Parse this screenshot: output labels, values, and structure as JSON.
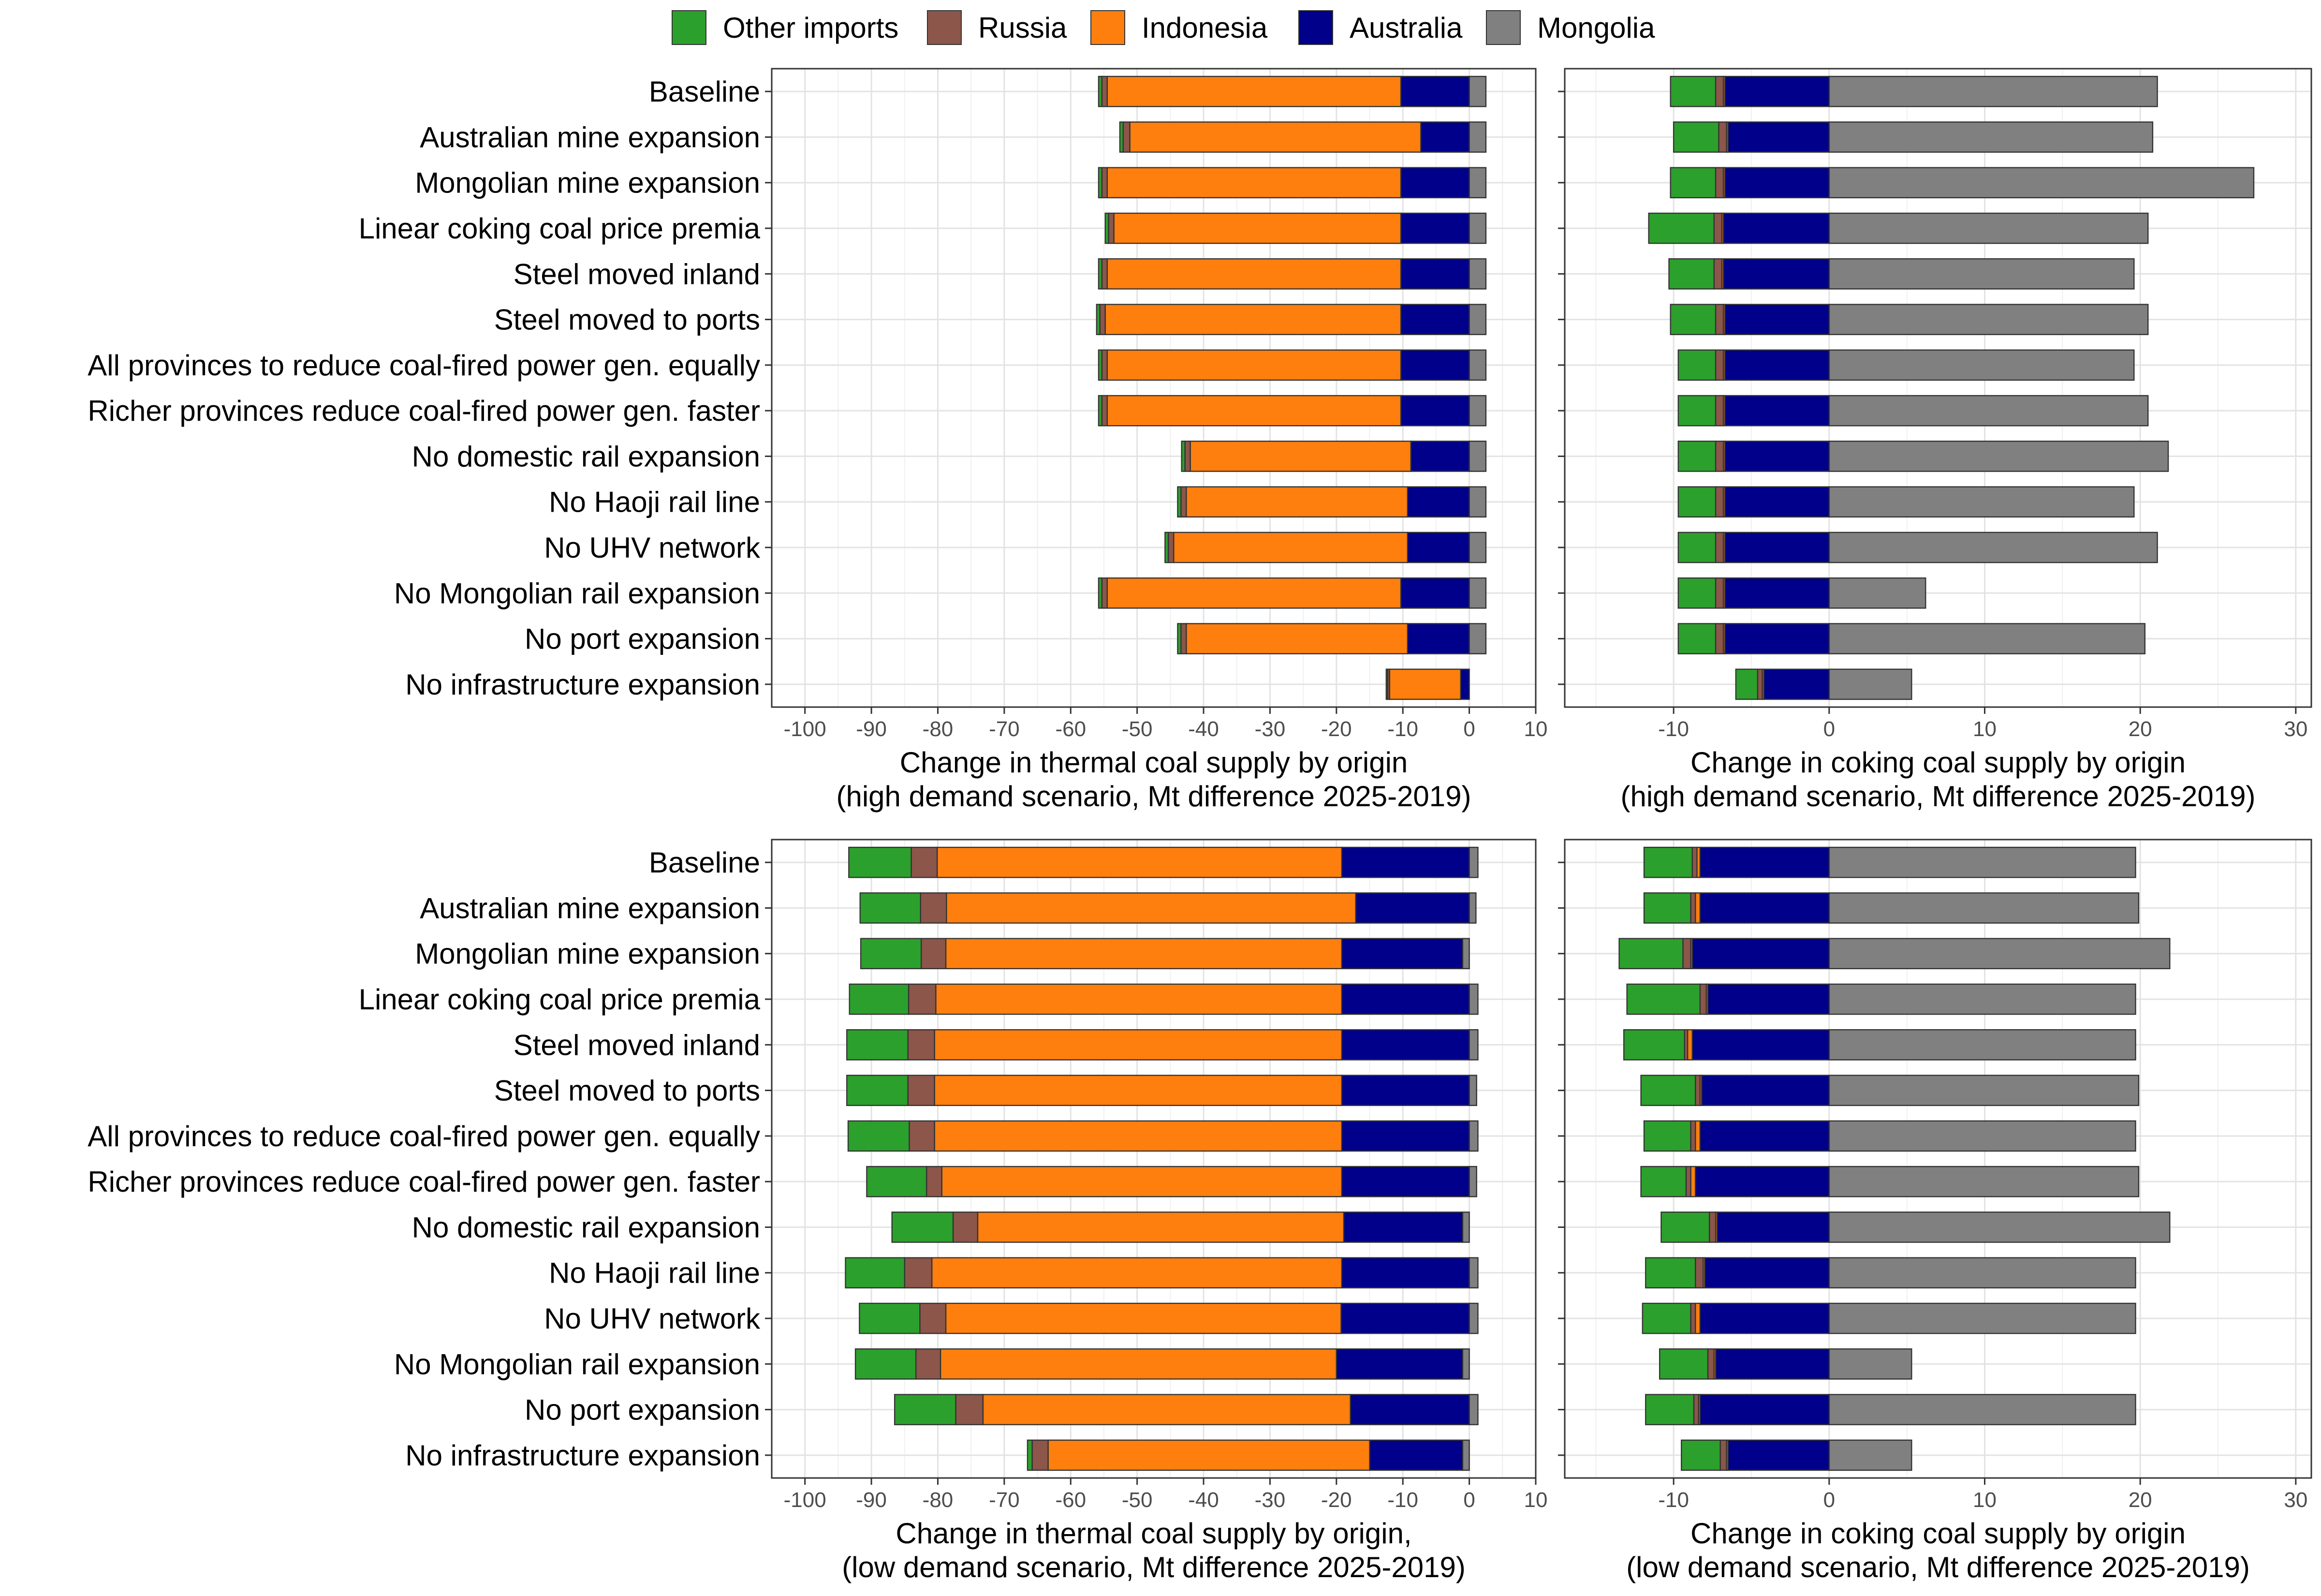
{
  "legend": {
    "items": [
      {
        "name": "Other imports",
        "color": "#2ca02c"
      },
      {
        "name": "Russia",
        "color": "#8c564b"
      },
      {
        "name": "Indonesia",
        "color": "#ff7f0e"
      },
      {
        "name": "Australia",
        "color": "#00008b"
      },
      {
        "name": "Mongolia",
        "color": "#808080"
      }
    ]
  },
  "chart_data": [
    {
      "id": "thermal_high",
      "type": "bar",
      "orientation": "horizontal",
      "stacking": "diverging",
      "title": "",
      "xlabel": [
        "Change in thermal coal supply by origin",
        "(high demand scenario, Mt difference 2025-2019)"
      ],
      "ylabel": "",
      "xlim": [
        -105,
        10
      ],
      "xticks": [
        -100,
        -90,
        -80,
        -70,
        -60,
        -50,
        -40,
        -30,
        -20,
        -10,
        0,
        10
      ],
      "categories": [
        "Baseline",
        "Australian mine expansion",
        "Mongolian mine expansion",
        "Linear coking coal price premia",
        "Steel moved inland",
        "Steel moved to ports",
        "All provinces to reduce coal-fired power gen. equally",
        "Richer provinces reduce coal-fired power gen. faster",
        "No domestic rail expansion",
        "No Haoji rail line",
        "No UHV network",
        "No Mongolian rail expansion",
        "No port expansion",
        "No infrastructure expansion"
      ],
      "series": [
        {
          "name": "Mongolia",
          "values": [
            2.5,
            2.5,
            2.5,
            2.5,
            2.5,
            2.5,
            2.5,
            2.5,
            2.5,
            2.5,
            2.5,
            2.5,
            2.5,
            0
          ]
        },
        {
          "name": "Australia",
          "values": [
            -10.3,
            -7.3,
            -10.3,
            -10.3,
            -10.3,
            -10.3,
            -10.3,
            -10.3,
            -8.8,
            -9.3,
            -9.3,
            -10.3,
            -9.3,
            -1.3
          ]
        },
        {
          "name": "Indonesia",
          "values": [
            -44.2,
            -43.8,
            -44.2,
            -43.2,
            -44.2,
            -44.5,
            -44.2,
            -44.2,
            -33.2,
            -33.3,
            -35.2,
            -44.2,
            -33.3,
            -10.7
          ]
        },
        {
          "name": "Russia",
          "values": [
            -0.8,
            -1.0,
            -0.8,
            -0.8,
            -0.8,
            -0.8,
            -0.8,
            -0.8,
            -0.8,
            -0.8,
            -0.8,
            -0.8,
            -0.8,
            -0.3
          ]
        },
        {
          "name": "Other imports",
          "values": [
            -0.5,
            -0.5,
            -0.5,
            -0.5,
            -0.5,
            -0.5,
            -0.5,
            -0.5,
            -0.5,
            -0.5,
            -0.5,
            -0.5,
            -0.5,
            -0.2
          ]
        }
      ]
    },
    {
      "id": "coking_high",
      "type": "bar",
      "orientation": "horizontal",
      "stacking": "diverging",
      "title": "",
      "xlabel": [
        "Change in coking coal supply by origin",
        "(high demand scenario, Mt difference 2025-2019)"
      ],
      "ylabel": "",
      "xlim": [
        -17,
        31
      ],
      "xticks": [
        -10,
        0,
        10,
        20,
        30
      ],
      "categories": [
        "Baseline",
        "Australian mine expansion",
        "Mongolian mine expansion",
        "Linear coking coal price premia",
        "Steel moved inland",
        "Steel moved to ports",
        "All provinces to reduce coal-fired power gen. equally",
        "Richer provinces reduce coal-fired power gen. faster",
        "No domestic rail expansion",
        "No Haoji rail line",
        "No UHV network",
        "No Mongolian rail expansion",
        "No port expansion",
        "No infrastructure expansion"
      ],
      "series": [
        {
          "name": "Mongolia",
          "values": [
            21.1,
            20.8,
            27.3,
            20.5,
            19.6,
            20.5,
            19.6,
            20.5,
            21.8,
            19.6,
            21.1,
            6.2,
            20.3,
            5.3
          ]
        },
        {
          "name": "Australia",
          "values": [
            -6.7,
            -6.5,
            -6.7,
            -6.8,
            -6.8,
            -6.7,
            -6.7,
            -6.7,
            -6.7,
            -6.7,
            -6.7,
            -6.7,
            -6.7,
            -4.2
          ]
        },
        {
          "name": "Indonesia",
          "values": [
            -0.1,
            -0.1,
            -0.1,
            -0.1,
            -0.1,
            -0.1,
            -0.1,
            -0.1,
            -0.1,
            -0.1,
            -0.1,
            -0.1,
            -0.1,
            -0.1
          ]
        },
        {
          "name": "Russia",
          "values": [
            -0.5,
            -0.5,
            -0.5,
            -0.5,
            -0.5,
            -0.5,
            -0.5,
            -0.5,
            -0.5,
            -0.5,
            -0.5,
            -0.5,
            -0.5,
            -0.3
          ]
        },
        {
          "name": "Other imports",
          "values": [
            -2.9,
            -2.9,
            -2.9,
            -4.2,
            -2.9,
            -2.9,
            -2.4,
            -2.4,
            -2.4,
            -2.4,
            -2.4,
            -2.4,
            -2.4,
            -1.4
          ]
        }
      ]
    },
    {
      "id": "thermal_low",
      "type": "bar",
      "orientation": "horizontal",
      "stacking": "diverging",
      "title": "",
      "xlabel": [
        "Change in thermal coal supply by origin,",
        "(low demand scenario, Mt difference 2025-2019)"
      ],
      "ylabel": "",
      "xlim": [
        -105,
        10
      ],
      "xticks": [
        -100,
        -90,
        -80,
        -70,
        -60,
        -50,
        -40,
        -30,
        -20,
        -10,
        0,
        10
      ],
      "categories": [
        "Baseline",
        "Australian mine expansion",
        "Mongolian mine expansion",
        "Linear coking coal price premia",
        "Steel moved inland",
        "Steel moved to ports",
        "All provinces to reduce coal-fired power gen. equally",
        "Richer provinces reduce coal-fired power gen. faster",
        "No domestic rail expansion",
        "No Haoji rail line",
        "No UHV network",
        "No Mongolian rail expansion",
        "No port expansion",
        "No infrastructure expansion"
      ],
      "series": [
        {
          "name": "Mongolia",
          "values": [
            1.3,
            1.0,
            -1.0,
            1.3,
            1.3,
            1.1,
            1.3,
            1.1,
            -1.0,
            1.3,
            1.3,
            -1.0,
            1.3,
            -1.0
          ]
        },
        {
          "name": "Australia",
          "values": [
            -19.2,
            -17.1,
            -18.2,
            -19.2,
            -19.2,
            -19.2,
            -19.2,
            -19.2,
            -17.9,
            -19.2,
            -19.3,
            -19.0,
            -17.9,
            -14.0
          ]
        },
        {
          "name": "Indonesia",
          "values": [
            -60.9,
            -61.6,
            -59.6,
            -61.1,
            -61.3,
            -61.3,
            -61.3,
            -60.2,
            -55.1,
            -61.7,
            -59.5,
            -59.6,
            -55.3,
            -48.4
          ]
        },
        {
          "name": "Russia",
          "values": [
            -3.9,
            -3.9,
            -3.7,
            -4.1,
            -4.0,
            -4.0,
            -3.8,
            -2.3,
            -3.7,
            -4.1,
            -3.9,
            -3.7,
            -4.1,
            -2.4
          ]
        },
        {
          "name": "Other imports",
          "values": [
            -9.4,
            -9.1,
            -9.1,
            -8.9,
            -9.2,
            -9.2,
            -9.2,
            -9.0,
            -9.2,
            -8.9,
            -9.1,
            -9.1,
            -9.2,
            -0.7
          ]
        }
      ]
    },
    {
      "id": "coking_low",
      "type": "bar",
      "orientation": "horizontal",
      "stacking": "diverging",
      "title": "",
      "xlabel": [
        "Change in coking coal supply by origin",
        "(low demand scenario, Mt difference 2025-2019)"
      ],
      "ylabel": "",
      "xlim": [
        -17,
        31
      ],
      "xticks": [
        -10,
        0,
        10,
        20,
        30
      ],
      "categories": [
        "Baseline",
        "Australian mine expansion",
        "Mongolian mine expansion",
        "Linear coking coal price premia",
        "Steel moved inland",
        "Steel moved to ports",
        "All provinces to reduce coal-fired power gen. equally",
        "Richer provinces reduce coal-fired power gen. faster",
        "No domestic rail expansion",
        "No Haoji rail line",
        "No UHV network",
        "No Mongolian rail expansion",
        "No port expansion",
        "No infrastructure expansion"
      ],
      "series": [
        {
          "name": "Mongolia",
          "values": [
            19.7,
            19.9,
            21.9,
            19.7,
            19.7,
            19.9,
            19.7,
            19.9,
            21.9,
            19.7,
            19.7,
            5.3,
            19.7,
            5.3
          ]
        },
        {
          "name": "Australia",
          "values": [
            -8.3,
            -8.3,
            -8.8,
            -7.8,
            -8.8,
            -8.2,
            -8.3,
            -8.6,
            -7.2,
            -8.0,
            -8.3,
            -7.3,
            -8.3,
            -6.5
          ]
        },
        {
          "name": "Indonesia",
          "values": [
            -0.2,
            -0.3,
            -0.1,
            -0.1,
            -0.3,
            -0.1,
            -0.3,
            -0.3,
            -0.1,
            -0.1,
            -0.3,
            -0.1,
            -0.1,
            -0.1
          ]
        },
        {
          "name": "Russia",
          "values": [
            -0.3,
            -0.3,
            -0.5,
            -0.4,
            -0.2,
            -0.3,
            -0.3,
            -0.3,
            -0.4,
            -0.5,
            -0.3,
            -0.4,
            -0.3,
            -0.4
          ]
        },
        {
          "name": "Other imports",
          "values": [
            -3.1,
            -3.0,
            -4.1,
            -4.7,
            -3.9,
            -3.5,
            -3.0,
            -2.9,
            -3.1,
            -3.2,
            -3.1,
            -3.1,
            -3.1,
            -2.5
          ]
        }
      ]
    }
  ]
}
